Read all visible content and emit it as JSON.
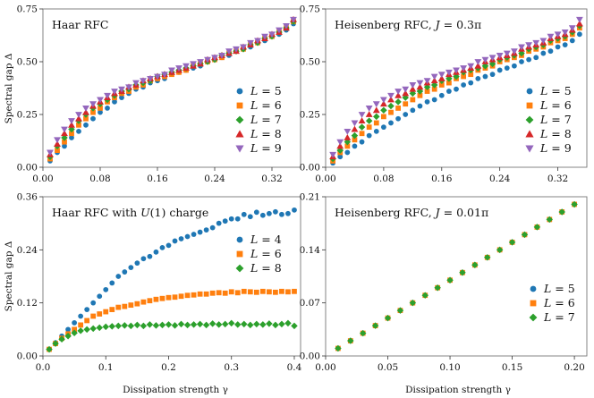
{
  "figure": {
    "ylabel": "Spectral gap Δ",
    "xlabel": "Dissipation strength γ"
  },
  "colors": {
    "blue": "#1f77b4",
    "orange": "#ff7f0e",
    "green": "#2ca02c",
    "red": "#d62728",
    "purple": "#9467bd"
  },
  "chart_data": [
    {
      "type": "scatter",
      "title": "Haar RFC",
      "xlim": [
        0,
        0.36
      ],
      "ylim": [
        0,
        0.75
      ],
      "xticks": [
        "0.00",
        "0.08",
        "0.16",
        "0.24",
        "0.32"
      ],
      "yticks": [
        "0.00",
        "0.25",
        "0.50",
        "0.75"
      ],
      "x": [
        0.01,
        0.02,
        0.03,
        0.04,
        0.05,
        0.06,
        0.07,
        0.08,
        0.09,
        0.1,
        0.11,
        0.12,
        0.13,
        0.14,
        0.15,
        0.16,
        0.17,
        0.18,
        0.19,
        0.2,
        0.21,
        0.22,
        0.23,
        0.24,
        0.25,
        0.26,
        0.27,
        0.28,
        0.29,
        0.3,
        0.31,
        0.32,
        0.33,
        0.34,
        0.35
      ],
      "series": [
        {
          "name": "L = 5",
          "marker": "circle",
          "color": "#1f77b4",
          "values": [
            0.03,
            0.07,
            0.1,
            0.14,
            0.17,
            0.2,
            0.23,
            0.26,
            0.28,
            0.31,
            0.33,
            0.35,
            0.37,
            0.38,
            0.4,
            0.41,
            0.42,
            0.44,
            0.45,
            0.46,
            0.47,
            0.48,
            0.5,
            0.51,
            0.52,
            0.53,
            0.55,
            0.56,
            0.57,
            0.59,
            0.6,
            0.62,
            0.63,
            0.65,
            0.68
          ]
        },
        {
          "name": "L = 6",
          "marker": "square",
          "color": "#ff7f0e",
          "values": [
            0.04,
            0.08,
            0.12,
            0.16,
            0.2,
            0.23,
            0.26,
            0.28,
            0.31,
            0.33,
            0.35,
            0.36,
            0.38,
            0.39,
            0.41,
            0.42,
            0.43,
            0.44,
            0.45,
            0.46,
            0.48,
            0.49,
            0.5,
            0.51,
            0.52,
            0.54,
            0.55,
            0.56,
            0.58,
            0.59,
            0.61,
            0.62,
            0.64,
            0.66,
            0.69
          ]
        },
        {
          "name": "L = 7",
          "marker": "diamond",
          "color": "#2ca02c",
          "values": [
            0.05,
            0.1,
            0.14,
            0.18,
            0.22,
            0.25,
            0.28,
            0.3,
            0.32,
            0.34,
            0.36,
            0.37,
            0.39,
            0.4,
            0.41,
            0.43,
            0.44,
            0.45,
            0.46,
            0.47,
            0.48,
            0.49,
            0.5,
            0.51,
            0.53,
            0.54,
            0.55,
            0.56,
            0.58,
            0.59,
            0.61,
            0.62,
            0.64,
            0.66,
            0.69
          ]
        },
        {
          "name": "L = 8",
          "marker": "triangle-up",
          "color": "#d62728",
          "values": [
            0.06,
            0.11,
            0.16,
            0.2,
            0.23,
            0.26,
            0.29,
            0.31,
            0.33,
            0.35,
            0.36,
            0.38,
            0.39,
            0.41,
            0.42,
            0.43,
            0.44,
            0.45,
            0.46,
            0.47,
            0.48,
            0.49,
            0.51,
            0.52,
            0.53,
            0.54,
            0.55,
            0.57,
            0.58,
            0.6,
            0.61,
            0.63,
            0.64,
            0.66,
            0.7
          ]
        },
        {
          "name": "L = 9",
          "marker": "triangle-down",
          "color": "#9467bd",
          "values": [
            0.07,
            0.13,
            0.18,
            0.22,
            0.25,
            0.28,
            0.3,
            0.32,
            0.34,
            0.36,
            0.37,
            0.38,
            0.4,
            0.41,
            0.42,
            0.43,
            0.44,
            0.46,
            0.47,
            0.48,
            0.49,
            0.5,
            0.51,
            0.52,
            0.53,
            0.55,
            0.56,
            0.57,
            0.59,
            0.6,
            0.62,
            0.63,
            0.65,
            0.67,
            0.7
          ]
        }
      ]
    },
    {
      "type": "scatter",
      "title": "Heisenberg RFC, J = 0.3π",
      "xlim": [
        0,
        0.36
      ],
      "ylim": [
        0,
        0.75
      ],
      "xticks": [
        "0.00",
        "0.08",
        "0.16",
        "0.24",
        "0.32"
      ],
      "yticks": [
        "0.00",
        "0.25",
        "0.50",
        "0.75"
      ],
      "x": [
        0.01,
        0.02,
        0.03,
        0.04,
        0.05,
        0.06,
        0.07,
        0.08,
        0.09,
        0.1,
        0.11,
        0.12,
        0.13,
        0.14,
        0.15,
        0.16,
        0.17,
        0.18,
        0.19,
        0.2,
        0.21,
        0.22,
        0.23,
        0.24,
        0.25,
        0.26,
        0.27,
        0.28,
        0.29,
        0.3,
        0.31,
        0.32,
        0.33,
        0.34,
        0.35
      ],
      "series": [
        {
          "name": "L = 5",
          "marker": "circle",
          "color": "#1f77b4",
          "values": [
            0.02,
            0.05,
            0.07,
            0.1,
            0.12,
            0.15,
            0.17,
            0.19,
            0.21,
            0.23,
            0.25,
            0.27,
            0.29,
            0.31,
            0.32,
            0.34,
            0.36,
            0.37,
            0.39,
            0.4,
            0.42,
            0.43,
            0.44,
            0.46,
            0.47,
            0.48,
            0.5,
            0.51,
            0.52,
            0.54,
            0.55,
            0.57,
            0.58,
            0.6,
            0.63
          ]
        },
        {
          "name": "L = 6",
          "marker": "square",
          "color": "#ff7f0e",
          "values": [
            0.03,
            0.07,
            0.1,
            0.13,
            0.16,
            0.19,
            0.21,
            0.24,
            0.26,
            0.28,
            0.3,
            0.32,
            0.34,
            0.36,
            0.37,
            0.39,
            0.4,
            0.42,
            0.43,
            0.44,
            0.46,
            0.47,
            0.48,
            0.5,
            0.51,
            0.52,
            0.53,
            0.55,
            0.56,
            0.57,
            0.59,
            0.6,
            0.61,
            0.63,
            0.66
          ]
        },
        {
          "name": "L = 7",
          "marker": "diamond",
          "color": "#2ca02c",
          "values": [
            0.04,
            0.08,
            0.12,
            0.15,
            0.19,
            0.22,
            0.24,
            0.27,
            0.29,
            0.31,
            0.33,
            0.35,
            0.36,
            0.38,
            0.39,
            0.41,
            0.42,
            0.43,
            0.45,
            0.46,
            0.47,
            0.48,
            0.49,
            0.51,
            0.52,
            0.53,
            0.54,
            0.56,
            0.57,
            0.58,
            0.6,
            0.61,
            0.62,
            0.64,
            0.67
          ]
        },
        {
          "name": "L = 8",
          "marker": "triangle-up",
          "color": "#d62728",
          "values": [
            0.05,
            0.1,
            0.14,
            0.18,
            0.22,
            0.25,
            0.27,
            0.3,
            0.32,
            0.34,
            0.35,
            0.37,
            0.38,
            0.4,
            0.41,
            0.42,
            0.44,
            0.45,
            0.46,
            0.47,
            0.48,
            0.5,
            0.51,
            0.52,
            0.53,
            0.54,
            0.56,
            0.57,
            0.58,
            0.59,
            0.61,
            0.62,
            0.63,
            0.65,
            0.68
          ]
        },
        {
          "name": "L = 9",
          "marker": "triangle-down",
          "color": "#9467bd",
          "values": [
            0.06,
            0.12,
            0.17,
            0.21,
            0.25,
            0.28,
            0.3,
            0.32,
            0.34,
            0.36,
            0.37,
            0.39,
            0.4,
            0.41,
            0.43,
            0.44,
            0.45,
            0.46,
            0.47,
            0.48,
            0.5,
            0.51,
            0.52,
            0.53,
            0.54,
            0.55,
            0.57,
            0.58,
            0.59,
            0.6,
            0.62,
            0.63,
            0.64,
            0.66,
            0.7
          ]
        }
      ]
    },
    {
      "type": "scatter",
      "title": "Haar RFC with U(1) charge",
      "xlim": [
        0,
        0.41
      ],
      "ylim": [
        0,
        0.36
      ],
      "xticks": [
        "0.0",
        "0.1",
        "0.2",
        "0.3",
        "0.4"
      ],
      "yticks": [
        "0.00",
        "0.12",
        "0.24",
        "0.36"
      ],
      "x": [
        0.01,
        0.02,
        0.03,
        0.04,
        0.05,
        0.06,
        0.07,
        0.08,
        0.09,
        0.1,
        0.11,
        0.12,
        0.13,
        0.14,
        0.15,
        0.16,
        0.17,
        0.18,
        0.19,
        0.2,
        0.21,
        0.22,
        0.23,
        0.24,
        0.25,
        0.26,
        0.27,
        0.28,
        0.29,
        0.3,
        0.31,
        0.32,
        0.33,
        0.34,
        0.35,
        0.36,
        0.37,
        0.38,
        0.39,
        0.4
      ],
      "series": [
        {
          "name": "L = 4",
          "marker": "circle",
          "color": "#1f77b4",
          "values": [
            0.015,
            0.03,
            0.045,
            0.06,
            0.075,
            0.09,
            0.105,
            0.12,
            0.135,
            0.15,
            0.165,
            0.18,
            0.19,
            0.2,
            0.21,
            0.22,
            0.225,
            0.235,
            0.245,
            0.25,
            0.26,
            0.265,
            0.27,
            0.275,
            0.28,
            0.285,
            0.29,
            0.3,
            0.305,
            0.31,
            0.31,
            0.32,
            0.315,
            0.325,
            0.318,
            0.322,
            0.326,
            0.32,
            0.322,
            0.33
          ]
        },
        {
          "name": "L = 6",
          "marker": "square",
          "color": "#ff7f0e",
          "values": [
            0.015,
            0.028,
            0.04,
            0.05,
            0.06,
            0.07,
            0.08,
            0.09,
            0.095,
            0.1,
            0.105,
            0.11,
            0.112,
            0.115,
            0.118,
            0.122,
            0.125,
            0.128,
            0.13,
            0.132,
            0.133,
            0.135,
            0.137,
            0.138,
            0.14,
            0.14,
            0.142,
            0.143,
            0.142,
            0.145,
            0.143,
            0.146,
            0.145,
            0.144,
            0.146,
            0.145,
            0.144,
            0.146,
            0.145,
            0.146
          ]
        },
        {
          "name": "L = 8",
          "marker": "diamond",
          "color": "#2ca02c",
          "values": [
            0.015,
            0.028,
            0.038,
            0.045,
            0.052,
            0.057,
            0.06,
            0.062,
            0.064,
            0.066,
            0.067,
            0.068,
            0.069,
            0.068,
            0.07,
            0.068,
            0.071,
            0.069,
            0.07,
            0.071,
            0.069,
            0.072,
            0.07,
            0.071,
            0.072,
            0.07,
            0.073,
            0.071,
            0.072,
            0.074,
            0.071,
            0.072,
            0.07,
            0.072,
            0.071,
            0.073,
            0.07,
            0.072,
            0.074,
            0.068
          ]
        }
      ]
    },
    {
      "type": "scatter",
      "title": "Heisenberg RFC, J = 0.01π",
      "xlim": [
        0,
        0.21
      ],
      "ylim": [
        0,
        0.21
      ],
      "xticks": [
        "0.00",
        "0.05",
        "0.10",
        "0.15",
        "0.20"
      ],
      "yticks": [
        "0.00",
        "0.07",
        "0.14",
        "0.21"
      ],
      "x": [
        0.01,
        0.02,
        0.03,
        0.04,
        0.05,
        0.06,
        0.07,
        0.08,
        0.09,
        0.1,
        0.11,
        0.12,
        0.13,
        0.14,
        0.15,
        0.16,
        0.17,
        0.18,
        0.19,
        0.2
      ],
      "series": [
        {
          "name": "L = 5",
          "marker": "circle",
          "color": "#1f77b4",
          "values": [
            0.01,
            0.02,
            0.03,
            0.04,
            0.05,
            0.06,
            0.07,
            0.08,
            0.09,
            0.1,
            0.11,
            0.12,
            0.13,
            0.14,
            0.15,
            0.16,
            0.17,
            0.18,
            0.19,
            0.2
          ]
        },
        {
          "name": "L = 6",
          "marker": "square",
          "color": "#ff7f0e",
          "values": [
            0.01,
            0.02,
            0.03,
            0.04,
            0.05,
            0.06,
            0.07,
            0.08,
            0.09,
            0.1,
            0.11,
            0.12,
            0.13,
            0.14,
            0.15,
            0.16,
            0.17,
            0.18,
            0.19,
            0.2
          ]
        },
        {
          "name": "L = 7",
          "marker": "diamond",
          "color": "#2ca02c",
          "values": [
            0.01,
            0.02,
            0.03,
            0.04,
            0.05,
            0.06,
            0.07,
            0.08,
            0.09,
            0.1,
            0.11,
            0.12,
            0.13,
            0.14,
            0.15,
            0.16,
            0.17,
            0.18,
            0.19,
            0.2
          ]
        }
      ]
    }
  ]
}
